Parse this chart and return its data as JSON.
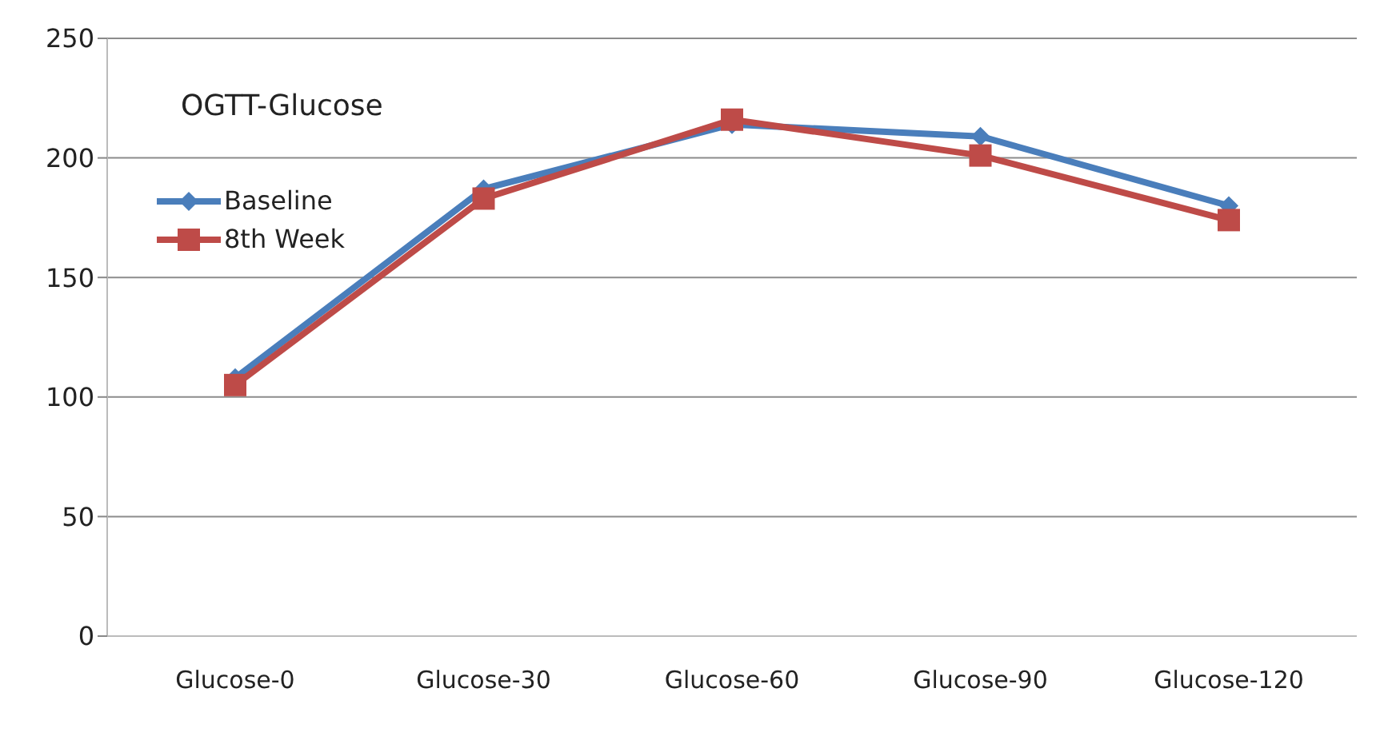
{
  "chart_data": {
    "type": "line",
    "title": "OGTT-Glucose",
    "categories": [
      "Glucose-0",
      "Glucose-30",
      "Glucose-60",
      "Glucose-90",
      "Glucose-120"
    ],
    "series": [
      {
        "name": "Baseline",
        "color": "#4a7ebb",
        "marker": "diamond",
        "values": [
          108,
          187,
          214,
          209,
          180
        ]
      },
      {
        "name": "8th Week",
        "color": "#be4b48",
        "marker": "square",
        "values": [
          105,
          183,
          216,
          201,
          174
        ]
      }
    ],
    "ylim": [
      0,
      250
    ],
    "yticks": [
      0,
      50,
      100,
      150,
      200,
      250
    ],
    "grid": "y",
    "legend": "top left"
  }
}
